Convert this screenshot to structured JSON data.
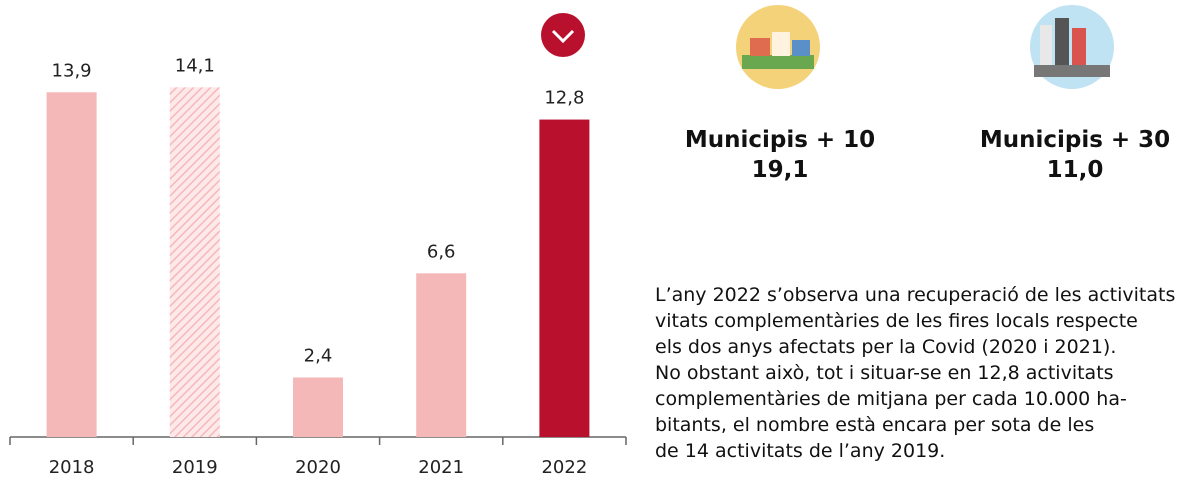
{
  "chart_data": {
    "type": "bar",
    "categories": [
      "2018",
      "2019",
      "2020",
      "2021",
      "2022"
    ],
    "values": [
      13.9,
      14.1,
      2.4,
      6.6,
      12.8
    ],
    "value_labels": [
      "13,9",
      "14,1",
      "2,4",
      "6,6",
      "12,8"
    ],
    "colors": [
      "#f5b8b9",
      "#f5b8b9",
      "#f5b8b9",
      "#f5b8b9",
      "#b8102d"
    ],
    "hatched": [
      false,
      true,
      false,
      false,
      false
    ]
  },
  "stats": [
    {
      "label": "Municipis + 10",
      "value": "19,1"
    },
    {
      "label": "Municipis + 30",
      "value": "11,0"
    }
  ],
  "paragraph": {
    "lines": [
      "L’any 2022 s’observa una recuperació de les activitats",
      "vitats complementàries de les fires locals respecte",
      "els dos anys afectats per la Covid (2020 i 2021).",
      "No obstant això, tot i situar-se en 12,8 activitats",
      "complementàries de mitjana per cada 10.000 ha-",
      "bitants, el nombre està encara per sota de les",
      "de 14 activitats de l’any 2019."
    ]
  }
}
